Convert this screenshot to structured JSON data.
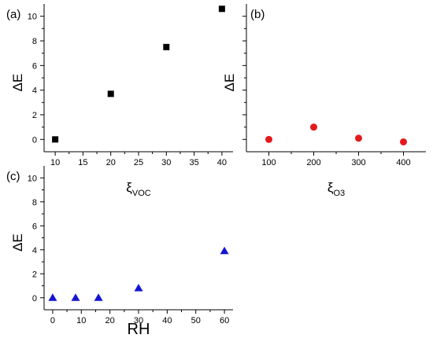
{
  "chart_data": [
    {
      "panel": "(a)",
      "type": "scatter",
      "xlabel": {
        "symbol": "ξ",
        "sub": "VOC"
      },
      "ylabel": "ΔE",
      "xlim": [
        8,
        42
      ],
      "ylim": [
        -1,
        11
      ],
      "xticks": [
        10,
        15,
        20,
        25,
        30,
        35,
        40
      ],
      "yticks": [
        0,
        2,
        4,
        6,
        8,
        10
      ],
      "marker": "square",
      "color": "#000000",
      "points": [
        {
          "x": 10,
          "y": 0.0
        },
        {
          "x": 20,
          "y": 3.7
        },
        {
          "x": 30,
          "y": 7.5
        },
        {
          "x": 40,
          "y": 10.6
        }
      ]
    },
    {
      "panel": "(b)",
      "type": "scatter",
      "xlabel": {
        "symbol": "ξ",
        "sub": "O3"
      },
      "ylabel": "ΔE",
      "xlim": [
        50,
        450
      ],
      "ylim": [
        -1,
        11
      ],
      "xticks": [
        100,
        200,
        300,
        400
      ],
      "yticks": [],
      "marker": "circle",
      "color": "#e31a1c",
      "points": [
        {
          "x": 100,
          "y": 0.0
        },
        {
          "x": 200,
          "y": 1.0
        },
        {
          "x": 300,
          "y": 0.1
        },
        {
          "x": 400,
          "y": -0.2
        }
      ]
    },
    {
      "panel": "(c)",
      "type": "scatter",
      "xlabel": {
        "symbol": "RH",
        "sub": ""
      },
      "ylabel": "ΔE",
      "xlim": [
        -3,
        63
      ],
      "ylim": [
        -1,
        11
      ],
      "xticks": [
        0,
        10,
        20,
        30,
        40,
        50,
        60
      ],
      "yticks": [
        0,
        2,
        4,
        6,
        8,
        10
      ],
      "marker": "triangle",
      "color": "#1414d2",
      "points": [
        {
          "x": 0,
          "y": 0.0
        },
        {
          "x": 8,
          "y": 0.0
        },
        {
          "x": 16,
          "y": 0.0
        },
        {
          "x": 30,
          "y": 0.8
        },
        {
          "x": 60,
          "y": 3.9
        }
      ]
    }
  ]
}
